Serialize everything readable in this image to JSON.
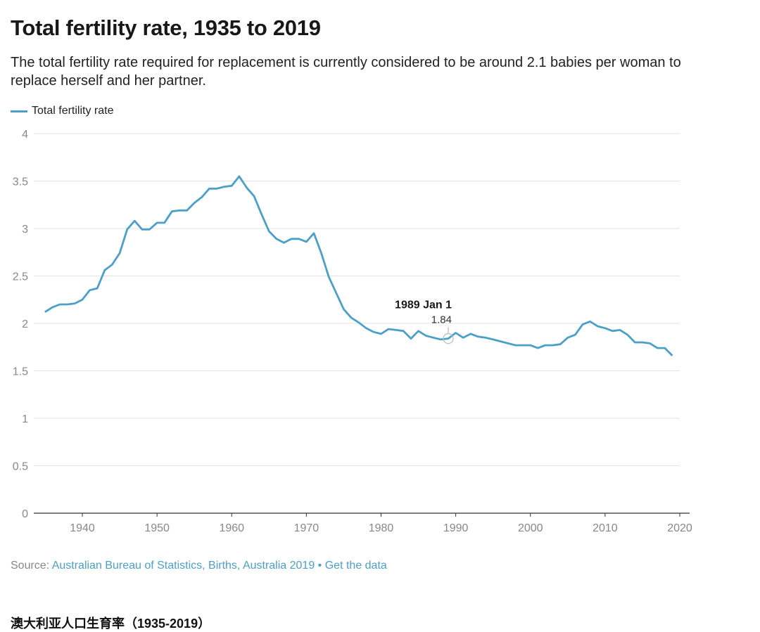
{
  "title": "Total fertility rate, 1935 to 2019",
  "subtitle": "The total fertility rate required for replacement is currently considered to be around 2.1 babies per woman to replace herself and her partner.",
  "source": {
    "prefix": "Source: ",
    "link_text": "Australian Bureau of Statistics, Births, Australia 2019",
    "separator": " • ",
    "get_data": "Get the data"
  },
  "footer_caption": "澳大利亚人口生育率（1935-2019）",
  "colors": {
    "line": "#4ba0c9",
    "link": "#4ba0c9",
    "grid": "#e3e3e3",
    "axis": "#333333"
  },
  "chart_data": {
    "type": "line",
    "title": "Total fertility rate, 1935 to 2019",
    "xlabel": "",
    "ylabel": "",
    "xlim": [
      1933.5,
      2020
    ],
    "ylim": [
      0,
      4
    ],
    "grid": true,
    "legend_position": "top-left",
    "x_ticks": [
      "1940",
      "1950",
      "1960",
      "1970",
      "1980",
      "1990",
      "2000",
      "2010",
      "2020"
    ],
    "y_ticks": [
      "0",
      "0.5",
      "1",
      "1.5",
      "2",
      "2.5",
      "3",
      "3.5",
      "4"
    ],
    "series": [
      {
        "name": "Total fertility rate",
        "x": [
          1935,
          1936,
          1937,
          1938,
          1939,
          1940,
          1941,
          1942,
          1943,
          1944,
          1945,
          1946,
          1947,
          1948,
          1949,
          1950,
          1951,
          1952,
          1953,
          1954,
          1955,
          1956,
          1957,
          1958,
          1959,
          1960,
          1961,
          1962,
          1963,
          1964,
          1965,
          1966,
          1967,
          1968,
          1969,
          1970,
          1971,
          1972,
          1973,
          1974,
          1975,
          1976,
          1977,
          1978,
          1979,
          1980,
          1981,
          1982,
          1983,
          1984,
          1985,
          1986,
          1987,
          1988,
          1989,
          1990,
          1991,
          1992,
          1993,
          1994,
          1995,
          1996,
          1997,
          1998,
          1999,
          2000,
          2001,
          2002,
          2003,
          2004,
          2005,
          2006,
          2007,
          2008,
          2009,
          2010,
          2011,
          2012,
          2013,
          2014,
          2015,
          2016,
          2017,
          2018,
          2019
        ],
        "values": [
          2.12,
          2.17,
          2.2,
          2.2,
          2.21,
          2.25,
          2.35,
          2.37,
          2.56,
          2.62,
          2.74,
          2.99,
          3.08,
          2.99,
          2.99,
          3.06,
          3.06,
          3.18,
          3.19,
          3.19,
          3.27,
          3.33,
          3.42,
          3.42,
          3.44,
          3.45,
          3.55,
          3.43,
          3.34,
          3.15,
          2.97,
          2.89,
          2.85,
          2.89,
          2.89,
          2.86,
          2.95,
          2.74,
          2.49,
          2.32,
          2.15,
          2.06,
          2.01,
          1.95,
          1.91,
          1.89,
          1.94,
          1.93,
          1.92,
          1.84,
          1.92,
          1.87,
          1.85,
          1.83,
          1.84,
          1.9,
          1.85,
          1.89,
          1.86,
          1.85,
          1.83,
          1.81,
          1.79,
          1.77,
          1.77,
          1.77,
          1.74,
          1.77,
          1.77,
          1.78,
          1.85,
          1.88,
          1.99,
          2.02,
          1.97,
          1.95,
          1.92,
          1.93,
          1.88,
          1.8,
          1.8,
          1.79,
          1.74,
          1.74,
          1.66
        ]
      }
    ],
    "annotation": {
      "label": "1989 Jan 1",
      "value": "1.84",
      "x": 1989,
      "y": 1.84
    }
  }
}
